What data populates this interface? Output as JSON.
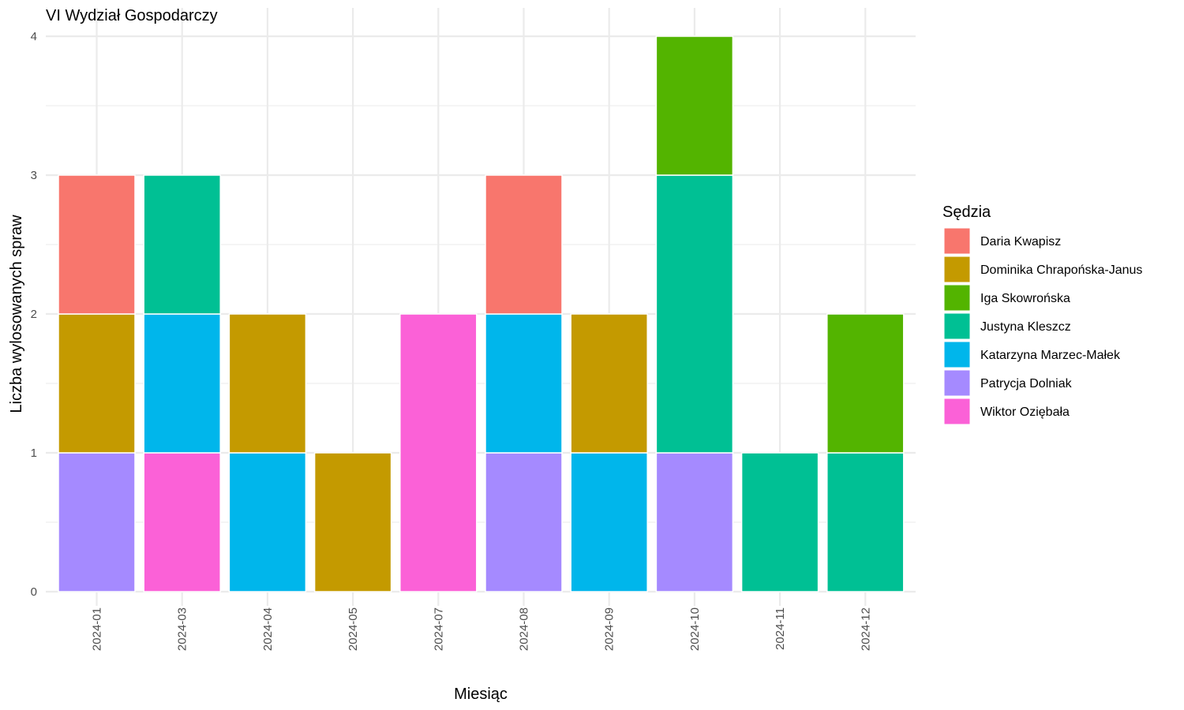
{
  "chart_data": {
    "type": "bar",
    "stacked": true,
    "title": "VI Wydział Gospodarczy",
    "xlabel": "Miesiąc",
    "ylabel": "Liczba wylosowanych spraw",
    "ylim": [
      0,
      4
    ],
    "yticks": [
      "0",
      "1",
      "2",
      "3",
      "4"
    ],
    "grid": true,
    "legend_position": "right",
    "legend_title": "Sędzia",
    "categories": [
      "2024-01",
      "2024-03",
      "2024-04",
      "2024-05",
      "2024-07",
      "2024-08",
      "2024-09",
      "2024-10",
      "2024-11",
      "2024-12"
    ],
    "series": [
      {
        "name": "Daria Kwapisz",
        "color": "#F8766D",
        "values": [
          1,
          0,
          0,
          0,
          0,
          1,
          0,
          0,
          0,
          0
        ]
      },
      {
        "name": "Dominika Chrapońska-Janus",
        "color": "#C49A00",
        "values": [
          1,
          0,
          1,
          1,
          0,
          0,
          1,
          0,
          0,
          0
        ]
      },
      {
        "name": "Iga Skowrońska",
        "color": "#53B400",
        "values": [
          0,
          0,
          0,
          0,
          0,
          0,
          0,
          1,
          0,
          1
        ]
      },
      {
        "name": "Justyna Kleszcz",
        "color": "#00C094",
        "values": [
          0,
          1,
          0,
          0,
          0,
          0,
          0,
          2,
          1,
          1
        ]
      },
      {
        "name": "Katarzyna Marzec-Małek",
        "color": "#00B6EB",
        "values": [
          0,
          1,
          1,
          0,
          0,
          1,
          1,
          0,
          0,
          0
        ]
      },
      {
        "name": "Patrycja Dolniak",
        "color": "#A58AFF",
        "values": [
          1,
          0,
          0,
          0,
          0,
          1,
          0,
          1,
          0,
          0
        ]
      },
      {
        "name": "Wiktor Oziębała",
        "color": "#FB61D7",
        "values": [
          0,
          1,
          0,
          0,
          2,
          0,
          0,
          0,
          0,
          0
        ]
      }
    ]
  }
}
